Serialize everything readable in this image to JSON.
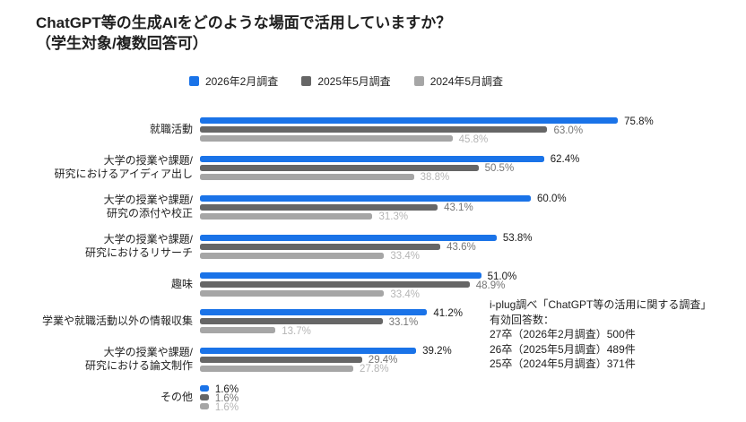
{
  "title": {
    "line1": "ChatGPT等の生成AIをどのような場面で活用していますか？",
    "line2": "（学生対象/複数回答可）"
  },
  "legend": [
    {
      "label": "2026年2月調査",
      "color": "#1a73e8"
    },
    {
      "label": "2025年5月調査",
      "color": "#666666"
    },
    {
      "label": "2024年5月調査",
      "color": "#a6a6a6"
    }
  ],
  "chart_data": {
    "type": "bar",
    "orientation": "horizontal",
    "title": "ChatGPT等の生成AIをどのような場面で活用していますか？（学生対象/複数回答可）",
    "value_suffix": "%",
    "xlim": [
      0,
      100
    ],
    "grid": false,
    "legend_position": "top",
    "categories": [
      "就職活動",
      "大学の授業や課題/研究におけるアイディア出し",
      "大学の授業や課題/研究の添付や校正",
      "大学の授業や課題/研究におけるリサーチ",
      "趣味",
      "学業や就職活動以外の情報収集",
      "大学の授業や課題/研究における論文制作",
      "その他"
    ],
    "series": [
      {
        "name": "2026年2月調査",
        "color": "#1a73e8",
        "label_color": "#1a1a1a",
        "values": [
          75.8,
          62.4,
          60.0,
          53.8,
          51.0,
          41.2,
          39.2,
          1.6
        ]
      },
      {
        "name": "2025年5月調査",
        "color": "#666666",
        "label_color": "#757575",
        "values": [
          63.0,
          50.5,
          43.1,
          43.6,
          48.9,
          33.1,
          29.4,
          1.6
        ]
      },
      {
        "name": "2024年5月調査",
        "color": "#a6a6a6",
        "label_color": "#b5b5b5",
        "values": [
          45.8,
          38.8,
          31.3,
          33.4,
          33.4,
          13.7,
          27.8,
          1.6
        ]
      }
    ]
  },
  "category_lines": [
    [
      "就職活動"
    ],
    [
      "大学の授業や課題/",
      "研究におけるアイディア出し"
    ],
    [
      "大学の授業や課題/",
      "研究の添付や校正"
    ],
    [
      "大学の授業や課題/",
      "研究におけるリサーチ"
    ],
    [
      "趣味"
    ],
    [
      "学業や就職活動以外の情報収集"
    ],
    [
      "大学の授業や課題/",
      "研究における論文制作"
    ],
    [
      "その他"
    ]
  ],
  "annotation": {
    "lines": [
      "i-plug調べ「ChatGPT等の活用に関する調査」",
      "有効回答数：",
      "27卒（2026年2月調査）500件",
      "26卒（2025年5月調査）489件",
      "25卒（2024年5月調査）371件"
    ]
  }
}
